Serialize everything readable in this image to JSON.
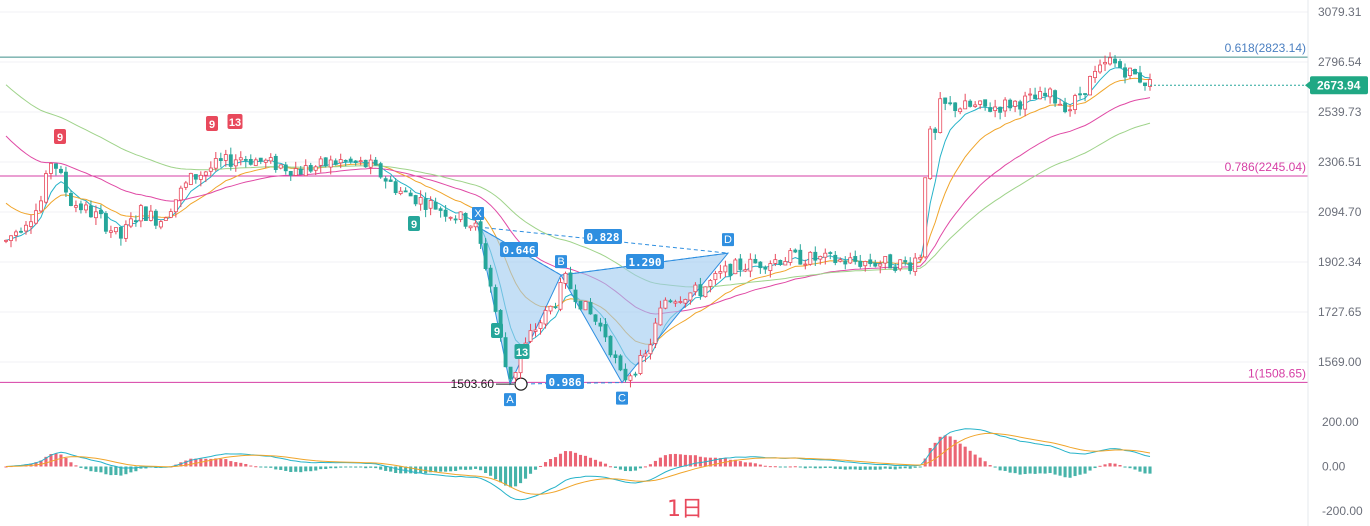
{
  "chart_data": {
    "type": "candlestick",
    "timeframe": "1日",
    "price_axis": {
      "ticks": [
        "3079.31",
        "2796.54",
        "2539.73",
        "2306.51",
        "2094.70",
        "1902.34",
        "1727.65",
        "1569.00"
      ],
      "tick_values": [
        3079.31,
        2796.54,
        2539.73,
        2306.51,
        2094.7,
        1902.34,
        1727.65,
        1569.0
      ],
      "scale": "log"
    },
    "current_price": "2673.94",
    "fib_levels": [
      {
        "label": "0.618(2823.14)",
        "value": 2823.14,
        "color": "#4a7fc1"
      },
      {
        "label": "0.786(2245.04)",
        "value": 2245.04,
        "color": "#d63fa5"
      },
      {
        "label": "1(1508.65)",
        "value": 1508.65,
        "color": "#d63fa5"
      }
    ],
    "low_marker": "1503.60",
    "harmonic_points": [
      {
        "label": "X",
        "value": 2035
      },
      {
        "label": "A",
        "value": 1503.6
      },
      {
        "label": "B",
        "value": 1855
      },
      {
        "label": "C",
        "value": 1508
      },
      {
        "label": "D",
        "value": 1935
      }
    ],
    "harmonic_ratios": [
      "0.646",
      "0.828",
      "1.290",
      "0.986"
    ],
    "sequential_counts": [
      "9",
      "9",
      "13",
      "9",
      "9",
      "13"
    ],
    "macd_axis": {
      "ticks": [
        "200.00",
        "0.00",
        "-200.00"
      ],
      "tick_values": [
        200,
        0,
        -200
      ]
    },
    "colors": {
      "up": "#e8495c",
      "down": "#26a69a",
      "ma_fast": "#26b3c9",
      "ma_mid": "#f0a52b",
      "ma_slow": "#e04aa5",
      "ma_long": "#9fd38a",
      "pattern_fill": "#9cc9f0",
      "pattern_line": "#2f8fe0"
    }
  }
}
